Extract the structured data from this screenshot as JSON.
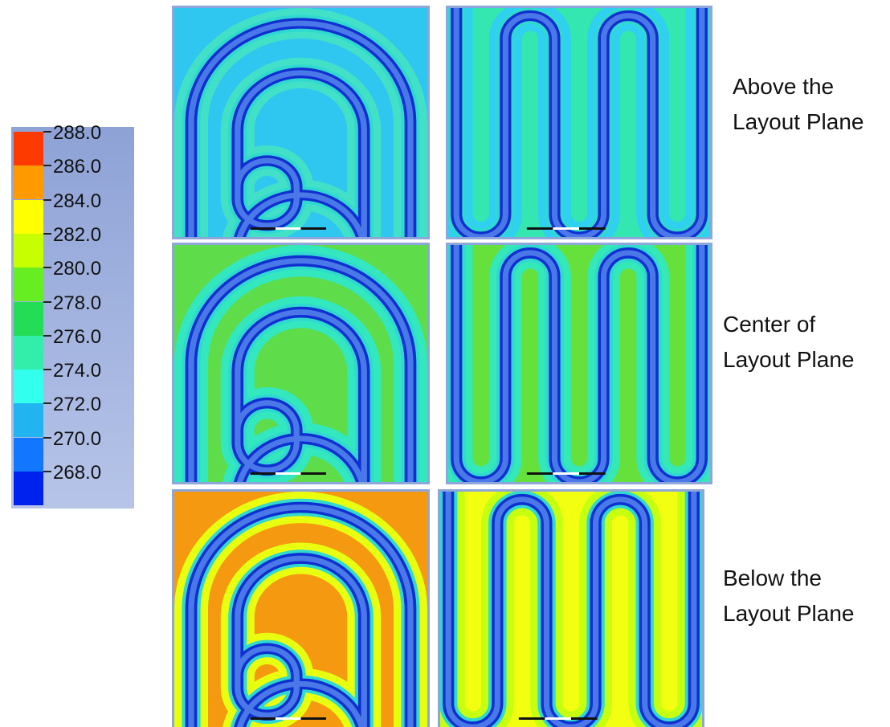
{
  "legend": {
    "ticks": [
      "288.0",
      "286.0",
      "284.0",
      "282.0",
      "280.0",
      "278.0",
      "276.0",
      "274.0",
      "272.0",
      "270.0",
      "268.0"
    ],
    "colors": [
      "#ff3a00",
      "#ff9900",
      "#ffff00",
      "#c8ff00",
      "#66ee22",
      "#22dd55",
      "#33eeaa",
      "#33ffee",
      "#22b4f0",
      "#1177ff",
      "#0022ee"
    ]
  },
  "row_labels": [
    {
      "line1": "Above the",
      "line2": "Layout Plane"
    },
    {
      "line1": "Center of",
      "line2": "Layout Plane"
    },
    {
      "line1": "Below the",
      "line2": "Layout Plane"
    }
  ],
  "panels": [
    {
      "layout": "spiral",
      "background": "#2fc7f0",
      "band": "#43e0c8"
    },
    {
      "layout": "serpentine",
      "background": "#34e6b0",
      "band": "#2fd0f0"
    },
    {
      "layout": "spiral",
      "background": "#5fdc4a",
      "band": "#33e8bf"
    },
    {
      "layout": "serpentine",
      "background": "#66e03a",
      "band": "#34e8b8"
    },
    {
      "layout": "spiral",
      "background": "#f59a10",
      "band": "#e8ff10"
    },
    {
      "layout": "serpentine",
      "background": "#f2ff10",
      "band": "#c6ff10"
    }
  ]
}
